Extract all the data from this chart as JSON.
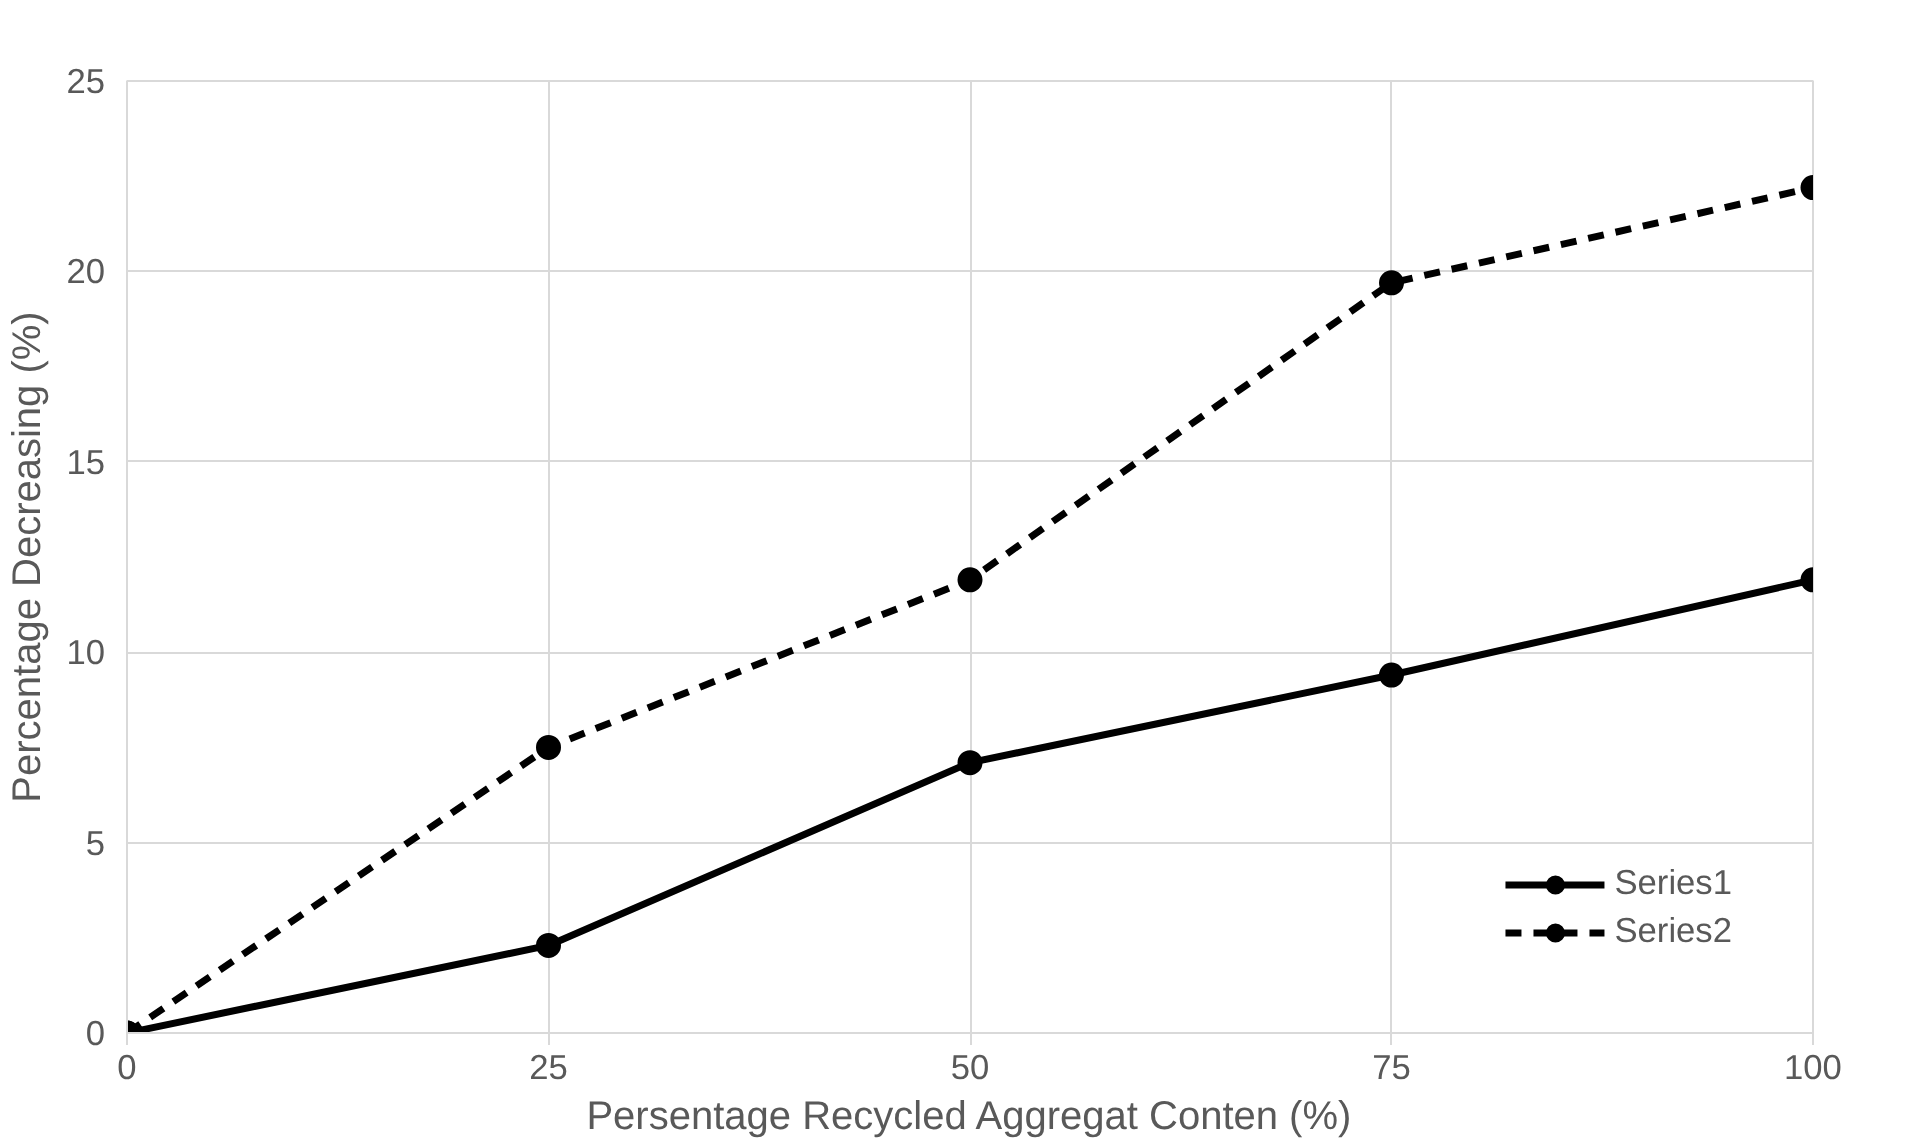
{
  "chart_data": {
    "type": "line",
    "xlabel": "Persentage Recycled Aggregat Conten (%)",
    "ylabel": "Percentage Decreasing (%)",
    "x": [
      0,
      25,
      50,
      75,
      100
    ],
    "series": [
      {
        "name": "Series1",
        "color": "#000000",
        "values": [
          0,
          2.3,
          7.1,
          9.4,
          11.9
        ],
        "line_style": "solid"
      },
      {
        "name": "Series2",
        "color": "#000000",
        "values": [
          0,
          7.5,
          11.9,
          19.7,
          22.2
        ],
        "line_style": "dashed"
      }
    ],
    "xlim": [
      0,
      100
    ],
    "xticks": [
      0,
      25,
      50,
      75,
      100
    ],
    "ylim": [
      0,
      25
    ],
    "yticks": [
      0,
      5,
      10,
      15,
      20,
      25
    ],
    "grid": true,
    "legend": "bottom right",
    "marker": "circle"
  }
}
